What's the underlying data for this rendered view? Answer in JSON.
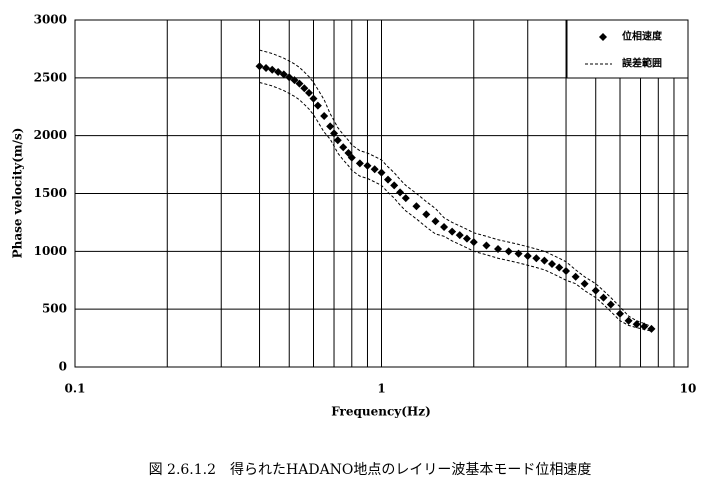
{
  "chart_data": {
    "type": "scatter",
    "caption": "図 2.6.1.2　得られたHADANO地点のレイリー波基本モード位相速度",
    "xlabel": "Frequency(Hz)",
    "ylabel": "Phase velocity(m/s)",
    "xscale": "log",
    "xlim": [
      0.1,
      10
    ],
    "xticks": [
      0.1,
      1,
      10
    ],
    "xgrid_minor": [
      0.2,
      0.3,
      0.4,
      0.5,
      0.6,
      0.7,
      0.8,
      0.9,
      2,
      3,
      4,
      5,
      6,
      7,
      8,
      9
    ],
    "ylim": [
      0,
      3000
    ],
    "yticks": [
      0,
      500,
      1000,
      1500,
      2000,
      2500,
      3000
    ],
    "grid": true,
    "legend": "upper right",
    "x": [
      0.4,
      0.42,
      0.44,
      0.46,
      0.48,
      0.5,
      0.52,
      0.54,
      0.56,
      0.58,
      0.6,
      0.62,
      0.65,
      0.68,
      0.7,
      0.72,
      0.75,
      0.78,
      0.8,
      0.85,
      0.9,
      0.95,
      1.0,
      1.05,
      1.1,
      1.15,
      1.2,
      1.3,
      1.4,
      1.5,
      1.6,
      1.7,
      1.8,
      1.9,
      2.0,
      2.2,
      2.4,
      2.6,
      2.8,
      3.0,
      3.2,
      3.4,
      3.6,
      3.8,
      4.0,
      4.3,
      4.6,
      5.0,
      5.3,
      5.6,
      6.0,
      6.4,
      6.8,
      7.2,
      7.6
    ],
    "series": [
      {
        "name": "位相速度",
        "style": "diamond",
        "color": "#000000",
        "values": [
          2600,
          2585,
          2570,
          2550,
          2530,
          2505,
          2480,
          2450,
          2410,
          2370,
          2320,
          2260,
          2170,
          2080,
          2020,
          1960,
          1900,
          1850,
          1810,
          1760,
          1740,
          1710,
          1680,
          1620,
          1570,
          1510,
          1460,
          1390,
          1320,
          1260,
          1210,
          1170,
          1140,
          1110,
          1080,
          1050,
          1020,
          1000,
          980,
          960,
          940,
          920,
          890,
          860,
          830,
          780,
          720,
          660,
          600,
          540,
          460,
          400,
          370,
          350,
          330
        ]
      },
      {
        "name": "誤差範囲",
        "style": "dashed",
        "color": "#000000",
        "values": [
          2740,
          2725,
          2710,
          2690,
          2670,
          2645,
          2620,
          2590,
          2550,
          2510,
          2460,
          2400,
          2310,
          2190,
          2130,
          2070,
          2010,
          1960,
          1920,
          1870,
          1850,
          1820,
          1790,
          1730,
          1680,
          1620,
          1570,
          1500,
          1430,
          1370,
          1290,
          1250,
          1220,
          1190,
          1160,
          1130,
          1100,
          1080,
          1060,
          1040,
          1020,
          1000,
          970,
          940,
          910,
          840,
          780,
          720,
          660,
          600,
          520,
          440,
          400,
          375,
          350
        ]
      },
      {
        "style": "dashed",
        "color": "#000000",
        "values": [
          2460,
          2445,
          2430,
          2410,
          2390,
          2365,
          2340,
          2310,
          2270,
          2230,
          2180,
          2120,
          2030,
          1970,
          1910,
          1850,
          1790,
          1740,
          1700,
          1650,
          1630,
          1600,
          1570,
          1510,
          1460,
          1400,
          1350,
          1280,
          1210,
          1150,
          1130,
          1090,
          1060,
          1030,
          1000,
          970,
          940,
          920,
          900,
          880,
          860,
          840,
          810,
          780,
          750,
          720,
          660,
          600,
          540,
          480,
          400,
          360,
          340,
          325,
          310
        ]
      }
    ]
  }
}
